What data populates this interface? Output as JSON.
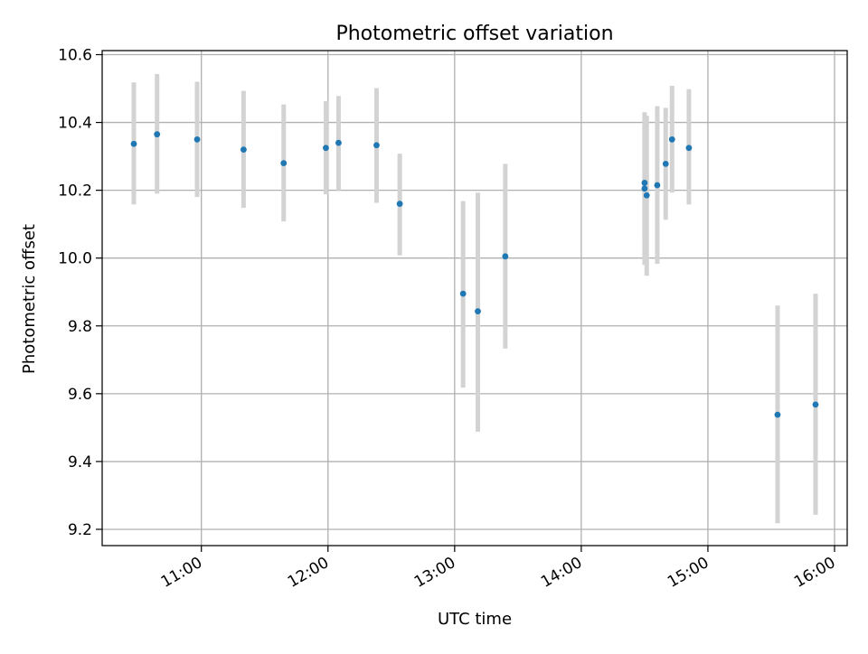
{
  "chart_data": {
    "type": "scatter",
    "title": "Photometric offset variation",
    "xlabel": "UTC time",
    "ylabel": "Photometric offset",
    "x_scale": "time",
    "x_tick_labels": [
      "11:00",
      "12:00",
      "13:00",
      "14:00",
      "15:00",
      "16:00"
    ],
    "x_ticks": [
      "11:00",
      "12:00",
      "13:00",
      "14:00",
      "15:00",
      "16:00"
    ],
    "y_ticks": [
      9.2,
      9.4,
      9.6,
      9.8,
      10.0,
      10.2,
      10.4,
      10.6
    ],
    "y_tick_labels": [
      "9.2",
      "9.4",
      "9.6",
      "9.8",
      "10.0",
      "10.2",
      "10.4",
      "10.6"
    ],
    "xlim": [
      "10:13",
      "16:06"
    ],
    "ylim": [
      9.152,
      10.612
    ],
    "grid": true,
    "marker_color": "#1f77b4",
    "errorbar_color": "#d3d3d3",
    "series": [
      {
        "points": [
          {
            "x": "10:28",
            "y": 10.337,
            "yerr_low": 10.158,
            "yerr_high": 10.518
          },
          {
            "x": "10:39",
            "y": 10.365,
            "yerr_low": 10.19,
            "yerr_high": 10.543
          },
          {
            "x": "10:58",
            "y": 10.35,
            "yerr_low": 10.18,
            "yerr_high": 10.52
          },
          {
            "x": "11:20",
            "y": 10.32,
            "yerr_low": 10.148,
            "yerr_high": 10.493
          },
          {
            "x": "11:39",
            "y": 10.28,
            "yerr_low": 10.108,
            "yerr_high": 10.453
          },
          {
            "x": "11:59",
            "y": 10.325,
            "yerr_low": 10.188,
            "yerr_high": 10.463
          },
          {
            "x": "12:05",
            "y": 10.34,
            "yerr_low": 10.2,
            "yerr_high": 10.478
          },
          {
            "x": "12:23",
            "y": 10.333,
            "yerr_low": 10.163,
            "yerr_high": 10.501
          },
          {
            "x": "12:34",
            "y": 10.16,
            "yerr_low": 10.008,
            "yerr_high": 10.308
          },
          {
            "x": "13:04",
            "y": 9.895,
            "yerr_low": 9.618,
            "yerr_high": 10.168
          },
          {
            "x": "13:11",
            "y": 9.843,
            "yerr_low": 9.488,
            "yerr_high": 10.193
          },
          {
            "x": "13:24",
            "y": 10.005,
            "yerr_low": 9.733,
            "yerr_high": 10.278
          },
          {
            "x": "14:30",
            "y": 10.222,
            "yerr_low": 10.058,
            "yerr_high": 10.388
          },
          {
            "x": "14:30",
            "y": 10.205,
            "yerr_low": 9.98,
            "yerr_high": 10.43
          },
          {
            "x": "14:31",
            "y": 10.185,
            "yerr_low": 9.948,
            "yerr_high": 10.42
          },
          {
            "x": "14:36",
            "y": 10.215,
            "yerr_low": 9.983,
            "yerr_high": 10.448
          },
          {
            "x": "14:40",
            "y": 10.278,
            "yerr_low": 10.113,
            "yerr_high": 10.443
          },
          {
            "x": "14:43",
            "y": 10.35,
            "yerr_low": 10.193,
            "yerr_high": 10.508
          },
          {
            "x": "14:51",
            "y": 10.325,
            "yerr_low": 10.158,
            "yerr_high": 10.498
          },
          {
            "x": "15:33",
            "y": 9.538,
            "yerr_low": 9.218,
            "yerr_high": 9.86
          },
          {
            "x": "15:51",
            "y": 9.568,
            "yerr_low": 9.243,
            "yerr_high": 9.895
          }
        ]
      }
    ]
  }
}
